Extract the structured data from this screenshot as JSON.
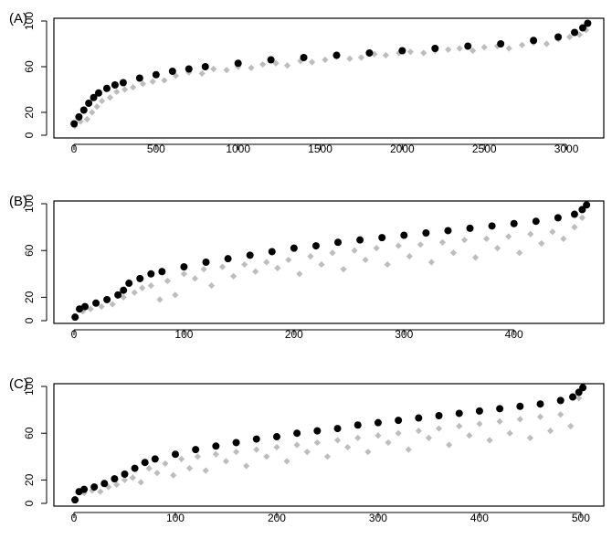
{
  "colors": {
    "marker_black": "#000000",
    "marker_gray": "#bdbdbd",
    "axis": "#000000"
  },
  "chart_data": [
    {
      "type": "scatter",
      "panel_label": "(A)",
      "xlabel": "",
      "ylabel": "",
      "xlim": [
        0,
        3150
      ],
      "ylim": [
        0,
        100
      ],
      "xticks": [
        "0",
        "500",
        "1000",
        "1500",
        "2000",
        "2500",
        "3000"
      ],
      "yticks": [
        "0",
        "20",
        "60",
        "100"
      ],
      "grid": false,
      "series": [
        {
          "marker": "circle",
          "color": "#000000",
          "x": [
            1,
            30,
            60,
            90,
            120,
            150,
            200,
            250,
            300,
            400,
            500,
            600,
            700,
            800,
            1000,
            1200,
            1400,
            1600,
            1800,
            2000,
            2200,
            2400,
            2600,
            2800,
            2950,
            3050,
            3100,
            3130
          ],
          "y": [
            10,
            16,
            22,
            28,
            33,
            37,
            41,
            44,
            46,
            50,
            53,
            56,
            58,
            60,
            63,
            66,
            68,
            70,
            72,
            74,
            76,
            78,
            80,
            83,
            86,
            90,
            94,
            98
          ]
        },
        {
          "marker": "diamond",
          "color": "#bdbdbd",
          "x": [
            5,
            40,
            80,
            110,
            140,
            170,
            220,
            260,
            310,
            360,
            420,
            480,
            550,
            620,
            700,
            780,
            850,
            930,
            1000,
            1080,
            1150,
            1230,
            1300,
            1380,
            1450,
            1530,
            1600,
            1680,
            1750,
            1830,
            1900,
            1980,
            2050,
            2130,
            2200,
            2280,
            2350,
            2430,
            2500,
            2580,
            2650,
            2730,
            2800,
            2880,
            2950,
            3020,
            3080,
            3120
          ],
          "y": [
            8,
            12,
            14,
            20,
            25,
            30,
            33,
            38,
            40,
            42,
            45,
            47,
            48,
            52,
            55,
            54,
            58,
            57,
            60,
            59,
            62,
            63,
            61,
            65,
            64,
            66,
            69,
            67,
            68,
            71,
            70,
            72,
            73,
            72,
            74,
            75,
            76,
            74,
            77,
            78,
            76,
            79,
            81,
            80,
            84,
            86,
            88,
            92
          ]
        }
      ]
    },
    {
      "type": "scatter",
      "panel_label": "(B)",
      "xlabel": "",
      "ylabel": "",
      "xlim": [
        0,
        470
      ],
      "ylim": [
        0,
        100
      ],
      "xticks": [
        "0",
        "100",
        "200",
        "300",
        "400"
      ],
      "yticks": [
        "0",
        "20",
        "60",
        "100"
      ],
      "grid": false,
      "series": [
        {
          "marker": "circle",
          "color": "#000000",
          "x": [
            1,
            5,
            10,
            20,
            30,
            40,
            45,
            50,
            60,
            70,
            80,
            100,
            120,
            140,
            160,
            180,
            200,
            220,
            240,
            260,
            280,
            300,
            320,
            340,
            360,
            380,
            400,
            420,
            440,
            455,
            462,
            466
          ],
          "y": [
            3,
            10,
            12,
            15,
            18,
            22,
            26,
            32,
            36,
            40,
            42,
            46,
            50,
            53,
            56,
            59,
            62,
            64,
            67,
            69,
            71,
            73,
            75,
            77,
            79,
            81,
            83,
            85,
            88,
            91,
            95,
            99
          ]
        },
        {
          "marker": "diamond",
          "color": "#bdbdbd",
          "x": [
            8,
            15,
            25,
            35,
            45,
            55,
            62,
            70,
            78,
            85,
            92,
            100,
            110,
            118,
            125,
            135,
            145,
            155,
            165,
            175,
            185,
            195,
            205,
            215,
            225,
            235,
            245,
            255,
            265,
            275,
            285,
            295,
            305,
            315,
            325,
            335,
            345,
            355,
            365,
            375,
            385,
            395,
            405,
            415,
            425,
            435,
            445,
            455,
            462
          ],
          "y": [
            8,
            10,
            12,
            14,
            20,
            24,
            28,
            30,
            18,
            34,
            22,
            40,
            36,
            44,
            30,
            46,
            38,
            48,
            42,
            50,
            45,
            52,
            40,
            55,
            48,
            58,
            44,
            60,
            52,
            62,
            48,
            64,
            55,
            65,
            50,
            67,
            58,
            69,
            54,
            70,
            62,
            72,
            58,
            74,
            66,
            76,
            70,
            80,
            88
          ]
        }
      ]
    },
    {
      "type": "scatter",
      "panel_label": "(C)",
      "xlabel": "",
      "ylabel": "",
      "xlim": [
        0,
        510
      ],
      "ylim": [
        0,
        100
      ],
      "xticks": [
        "0",
        "100",
        "200",
        "300",
        "400",
        "500"
      ],
      "yticks": [
        "0",
        "20",
        "60",
        "100"
      ],
      "grid": false,
      "series": [
        {
          "marker": "circle",
          "color": "#000000",
          "x": [
            1,
            5,
            10,
            20,
            30,
            40,
            50,
            60,
            70,
            80,
            100,
            120,
            140,
            160,
            180,
            200,
            220,
            240,
            260,
            280,
            300,
            320,
            340,
            360,
            380,
            400,
            420,
            440,
            460,
            480,
            492,
            498,
            502
          ],
          "y": [
            3,
            10,
            12,
            14,
            17,
            21,
            25,
            30,
            35,
            38,
            42,
            46,
            49,
            52,
            55,
            57,
            60,
            62,
            64,
            67,
            69,
            71,
            73,
            75,
            77,
            79,
            81,
            83,
            85,
            88,
            91,
            95,
            99
          ]
        },
        {
          "marker": "diamond",
          "color": "#bdbdbd",
          "x": [
            10,
            18,
            26,
            34,
            42,
            50,
            58,
            66,
            74,
            82,
            90,
            98,
            106,
            114,
            122,
            130,
            140,
            150,
            160,
            170,
            180,
            190,
            200,
            210,
            220,
            230,
            240,
            250,
            260,
            270,
            280,
            290,
            300,
            310,
            320,
            330,
            340,
            350,
            360,
            370,
            380,
            390,
            400,
            410,
            420,
            430,
            440,
            450,
            460,
            470,
            480,
            490,
            498
          ],
          "y": [
            9,
            11,
            10,
            14,
            16,
            20,
            22,
            18,
            30,
            26,
            34,
            24,
            38,
            30,
            40,
            28,
            42,
            36,
            44,
            32,
            46,
            40,
            48,
            36,
            50,
            44,
            52,
            40,
            54,
            48,
            56,
            44,
            58,
            52,
            60,
            46,
            62,
            56,
            64,
            50,
            66,
            58,
            68,
            54,
            70,
            60,
            72,
            56,
            74,
            62,
            76,
            66,
            90
          ]
        }
      ]
    }
  ]
}
